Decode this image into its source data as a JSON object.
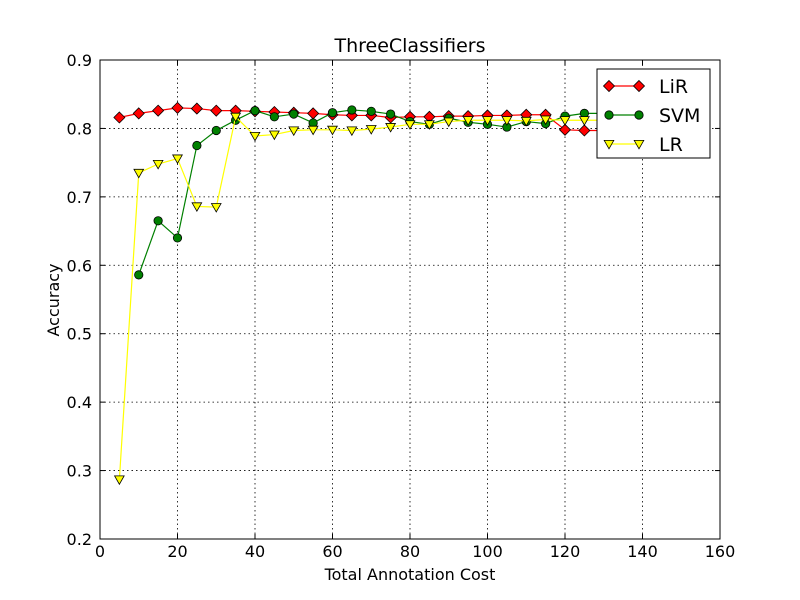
{
  "chart_data": {
    "type": "line",
    "title": "ThreeClassifiers",
    "xlabel": "Total Annotation Cost",
    "ylabel": "Accuracy",
    "xlim": [
      0,
      160
    ],
    "ylim": [
      0.2,
      0.9
    ],
    "xticks": [
      0,
      20,
      40,
      60,
      80,
      100,
      120,
      140,
      160
    ],
    "yticks": [
      0.2,
      0.3,
      0.4,
      0.5,
      0.6,
      0.7,
      0.8,
      0.9
    ],
    "xtick_labels": [
      "0",
      "20",
      "40",
      "60",
      "80",
      "100",
      "120",
      "140",
      "160"
    ],
    "ytick_labels": [
      "0.2",
      "0.3",
      "0.4",
      "0.5",
      "0.6",
      "0.7",
      "0.8",
      "0.9"
    ],
    "grid": true,
    "legend": "top-right",
    "series": [
      {
        "name": "LiR",
        "color": "#ff0000",
        "marker": "diamond",
        "x": [
          5,
          10,
          15,
          20,
          25,
          30,
          35,
          40,
          45,
          50,
          55,
          60,
          65,
          70,
          75,
          80,
          85,
          90,
          95,
          100,
          105,
          110,
          115,
          120,
          125,
          130,
          135
        ],
        "y": [
          0.816,
          0.822,
          0.826,
          0.83,
          0.829,
          0.826,
          0.826,
          0.825,
          0.824,
          0.823,
          0.822,
          0.82,
          0.819,
          0.819,
          0.816,
          0.817,
          0.817,
          0.818,
          0.818,
          0.819,
          0.819,
          0.82,
          0.82,
          0.798,
          0.797,
          0.797,
          0.797
        ]
      },
      {
        "name": "SVM",
        "color": "#008000",
        "marker": "circle",
        "x": [
          10,
          15,
          20,
          25,
          30,
          35,
          40,
          45,
          50,
          55,
          60,
          65,
          70,
          75,
          80,
          85,
          90,
          95,
          100,
          105,
          110,
          115,
          120,
          125,
          130,
          135
        ],
        "y": [
          0.586,
          0.665,
          0.64,
          0.775,
          0.797,
          0.812,
          0.826,
          0.817,
          0.821,
          0.808,
          0.823,
          0.827,
          0.825,
          0.821,
          0.81,
          0.806,
          0.815,
          0.809,
          0.806,
          0.802,
          0.81,
          0.807,
          0.818,
          0.822,
          0.822,
          0.822
        ]
      },
      {
        "name": "LR",
        "color": "#ffff00",
        "marker": "triangle-down",
        "x": [
          5,
          10,
          15,
          20,
          25,
          30,
          35,
          40,
          45,
          50,
          55,
          60,
          65,
          70,
          75,
          80,
          85,
          90,
          95,
          100,
          105,
          110,
          115,
          120,
          125,
          130,
          135
        ],
        "y": [
          0.287,
          0.735,
          0.748,
          0.756,
          0.686,
          0.685,
          0.817,
          0.789,
          0.791,
          0.797,
          0.798,
          0.798,
          0.797,
          0.799,
          0.802,
          0.806,
          0.806,
          0.81,
          0.812,
          0.812,
          0.812,
          0.811,
          0.813,
          0.812,
          0.812,
          0.812,
          0.812
        ]
      }
    ]
  }
}
